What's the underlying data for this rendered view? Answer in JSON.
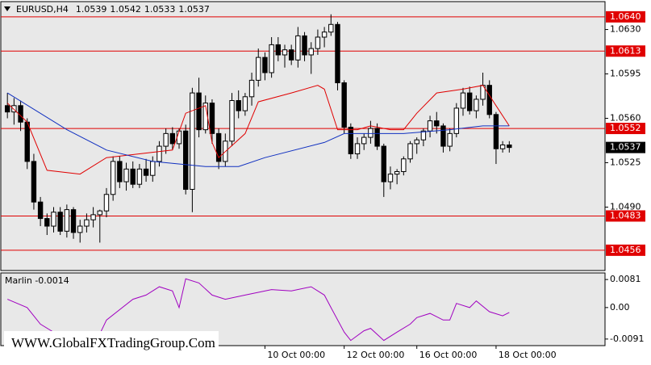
{
  "chart_data": [
    {
      "type": "candlestick",
      "title": "EURUSD,H4",
      "xlim": [
        -1,
        90.5
      ],
      "xticks": [
        {
          "value": 39,
          "label": "10 Oct 00:00"
        },
        {
          "value": 51,
          "label": "12 Oct 00:00"
        },
        {
          "value": 62,
          "label": "16 Oct 00:00"
        },
        {
          "value": 74,
          "label": "18 Oct 00:00"
        }
      ],
      "ylim": [
        1.044,
        1.0652
      ],
      "yticks": [
        {
          "value": 1.063,
          "label": "1.0630"
        },
        1.0595,
        {
          "value": 1.056,
          "label": "1.0560"
        },
        1.0525,
        {
          "value": 1.049,
          "label": "1.0490"
        }
      ],
      "up_color": "#ffffff",
      "down_color": "#000000",
      "level_color": "#e00000",
      "levels": [
        {
          "value": 1.064,
          "label": "1.0640"
        },
        1.0613,
        1.0552,
        1.0483,
        1.0456
      ],
      "open": [
        1.057,
        1.0565,
        1.057,
        1.0557,
        1.0526,
        1.0494,
        1.0481,
        1.0475,
        1.0486,
        1.0471,
        1.0488,
        1.047,
        1.0475,
        1.048,
        1.0484,
        1.0487,
        1.05,
        1.0526,
        1.051,
        1.052,
        1.0508,
        1.052,
        1.0515,
        1.0526,
        1.0538,
        1.0548,
        1.054,
        1.055,
        1.0504,
        1.058,
        1.0551,
        1.0572,
        1.0548,
        1.0526,
        1.0542,
        1.0574,
        1.0566,
        1.0577,
        1.059,
        1.0608,
        1.0596,
        1.0618,
        1.061,
        1.0614,
        1.0606,
        1.0625,
        1.061,
        1.0615,
        1.0624,
        1.0628,
        1.0634,
        1.0588,
        1.0553,
        1.0532,
        1.054,
        1.0545,
        1.0552,
        1.0538,
        1.051,
        1.0516,
        1.0518,
        1.0528,
        1.054,
        1.0543,
        1.055,
        1.0558,
        1.0554,
        1.0538,
        1.0548,
        1.0568,
        1.058,
        1.0566,
        1.0575,
        1.0586,
        1.0563,
        1.0536,
        1.0539
      ],
      "high": [
        1.058,
        1.0576,
        1.0574,
        1.056,
        1.0532,
        1.0498,
        1.0485,
        1.049,
        1.049,
        1.0492,
        1.049,
        1.048,
        1.0485,
        1.049,
        1.0488,
        1.0505,
        1.053,
        1.053,
        1.0525,
        1.0526,
        1.0524,
        1.0528,
        1.053,
        1.0542,
        1.0552,
        1.0553,
        1.0552,
        1.0555,
        1.0584,
        1.0592,
        1.0578,
        1.0575,
        1.0552,
        1.0548,
        1.058,
        1.0582,
        1.058,
        1.0596,
        1.0615,
        1.0612,
        1.0624,
        1.0624,
        1.0618,
        1.0618,
        1.0632,
        1.0628,
        1.062,
        1.063,
        1.0632,
        1.0642,
        1.0636,
        1.059,
        1.0556,
        1.0545,
        1.0548,
        1.0558,
        1.0556,
        1.054,
        1.0522,
        1.052,
        1.053,
        1.0542,
        1.0545,
        1.0552,
        1.0562,
        1.0565,
        1.0556,
        1.0552,
        1.0572,
        1.0584,
        1.0585,
        1.0578,
        1.0596,
        1.059,
        1.0565,
        1.0542,
        1.0542
      ],
      "low": [
        1.056,
        1.0555,
        1.055,
        1.052,
        1.0488,
        1.0475,
        1.0468,
        1.047,
        1.0468,
        1.0466,
        1.0465,
        1.0462,
        1.047,
        1.0474,
        1.0462,
        1.0482,
        1.0495,
        1.0505,
        1.0503,
        1.0505,
        1.0505,
        1.051,
        1.051,
        1.0522,
        1.0532,
        1.0535,
        1.0536,
        1.05,
        1.0486,
        1.0545,
        1.0548,
        1.054,
        1.052,
        1.0522,
        1.0538,
        1.056,
        1.0562,
        1.057,
        1.0585,
        1.059,
        1.0592,
        1.0605,
        1.06,
        1.0602,
        1.06,
        1.0605,
        1.0595,
        1.061,
        1.0616,
        1.0625,
        1.0582,
        1.0548,
        1.0528,
        1.0528,
        1.0535,
        1.054,
        1.0535,
        1.0498,
        1.0504,
        1.0508,
        1.0515,
        1.0525,
        1.0532,
        1.0538,
        1.0545,
        1.0548,
        1.0533,
        1.0534,
        1.0545,
        1.0562,
        1.0563,
        1.056,
        1.057,
        1.056,
        1.0524,
        1.0533,
        1.0533
      ],
      "close": [
        1.0565,
        1.057,
        1.0557,
        1.0526,
        1.0494,
        1.0481,
        1.0475,
        1.0486,
        1.0471,
        1.0488,
        1.047,
        1.0475,
        1.048,
        1.0484,
        1.0487,
        1.05,
        1.0526,
        1.051,
        1.052,
        1.0508,
        1.052,
        1.0515,
        1.0526,
        1.0538,
        1.0548,
        1.054,
        1.055,
        1.0504,
        1.058,
        1.0551,
        1.0572,
        1.0548,
        1.0526,
        1.0542,
        1.0574,
        1.0566,
        1.0577,
        1.059,
        1.0608,
        1.0596,
        1.0618,
        1.061,
        1.0614,
        1.0606,
        1.0625,
        1.061,
        1.0615,
        1.0624,
        1.0628,
        1.0634,
        1.0588,
        1.0553,
        1.0532,
        1.054,
        1.0545,
        1.0552,
        1.0538,
        1.051,
        1.0516,
        1.0518,
        1.0528,
        1.054,
        1.0543,
        1.055,
        1.0558,
        1.0554,
        1.0538,
        1.0548,
        1.0568,
        1.058,
        1.0566,
        1.0575,
        1.0586,
        1.0563,
        1.0536,
        1.0539,
        1.0537
      ],
      "lines": [
        {
          "color": "#e00000",
          "x": [
            0,
            3,
            6,
            11,
            15,
            20,
            25,
            27,
            30,
            31,
            32,
            36,
            38,
            43,
            47,
            48,
            50,
            53,
            55,
            58,
            60,
            62,
            65,
            69,
            72,
            74,
            76
          ],
          "values": [
            1.0572,
            1.0557,
            1.0519,
            1.0516,
            1.0529,
            1.0532,
            1.0535,
            1.0564,
            1.057,
            1.0541,
            1.0529,
            1.0548,
            1.0573,
            1.058,
            1.0586,
            1.0583,
            1.0551,
            1.0551,
            1.0554,
            1.0551,
            1.0551,
            1.0564,
            1.058,
            1.0583,
            1.0586,
            1.057,
            1.0554
          ]
        },
        {
          "color": "#1030c0",
          "x": [
            0,
            9,
            15,
            22,
            30,
            35,
            39,
            48,
            51,
            60,
            67,
            72,
            76
          ],
          "values": [
            1.058,
            1.0551,
            1.0535,
            1.0526,
            1.0522,
            1.0522,
            1.0529,
            1.0541,
            1.0548,
            1.0548,
            1.0551,
            1.0554,
            1.0554
          ]
        }
      ],
      "watermark": "WWW.GlobalFXTradingGroup.Com"
    },
    {
      "type": "line",
      "title": "Marlin -0.0014",
      "xlim": [
        -1,
        90.5
      ],
      "ylim": [
        -0.011,
        0.01
      ],
      "yticks": [
        0.0081,
        {
          "value": 0,
          "label": "0.00"
        },
        -0.0091
      ],
      "series": [
        {
          "color": "#a000c0",
          "x": [
            0,
            3,
            5,
            8,
            14,
            15,
            19,
            21,
            23,
            25,
            26,
            27,
            29,
            31,
            33,
            36,
            40,
            43,
            46,
            48,
            49,
            51,
            52,
            54,
            55,
            57,
            59,
            61,
            62,
            64,
            66,
            67,
            68,
            70,
            71,
            73,
            75,
            76
          ],
          "values": [
            0.0024,
            0.0,
            -0.0048,
            -0.0083,
            -0.0076,
            -0.0036,
            0.0024,
            0.0036,
            0.006,
            0.0048,
            0.0,
            0.0083,
            0.0071,
            0.0036,
            0.0024,
            0.0036,
            0.0052,
            0.0048,
            0.006,
            0.0036,
            0.0,
            -0.0071,
            -0.0095,
            -0.0067,
            -0.006,
            -0.0095,
            -0.0071,
            -0.0048,
            -0.0029,
            -0.0017,
            -0.0036,
            -0.0036,
            0.0012,
            0.0,
            0.0019,
            -0.0012,
            -0.0024,
            -0.0014
          ]
        }
      ]
    }
  ]
}
